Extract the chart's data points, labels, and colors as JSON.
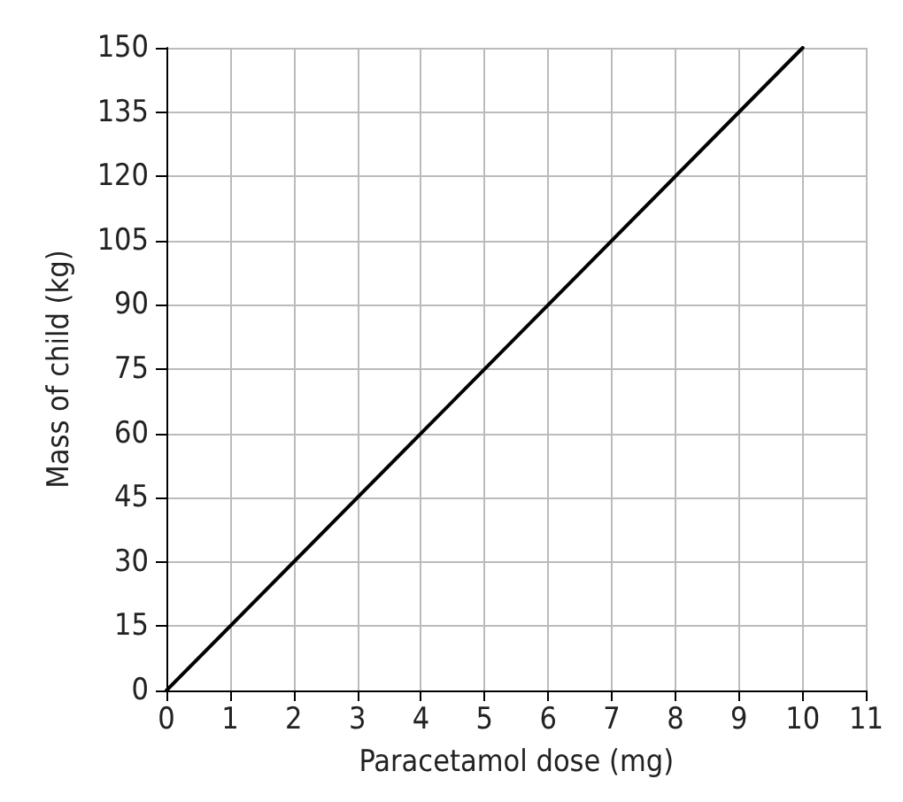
{
  "chart_data": {
    "type": "line",
    "xlabel": "Paracetamol dose (mg)",
    "ylabel": "Mass of child (kg)",
    "x": [
      0,
      10
    ],
    "series": [
      {
        "color": "#000000",
        "values": [
          0,
          150
        ]
      }
    ],
    "xlim": [
      0,
      11
    ],
    "xticks": [
      0,
      1,
      2,
      3,
      4,
      5,
      6,
      7,
      8,
      9,
      10,
      11
    ],
    "ylim": [
      0,
      150
    ],
    "yticks": [
      0,
      15,
      30,
      45,
      60,
      75,
      90,
      105,
      120,
      135,
      150
    ],
    "grid": true,
    "marker": "none",
    "line_style": "solid"
  }
}
